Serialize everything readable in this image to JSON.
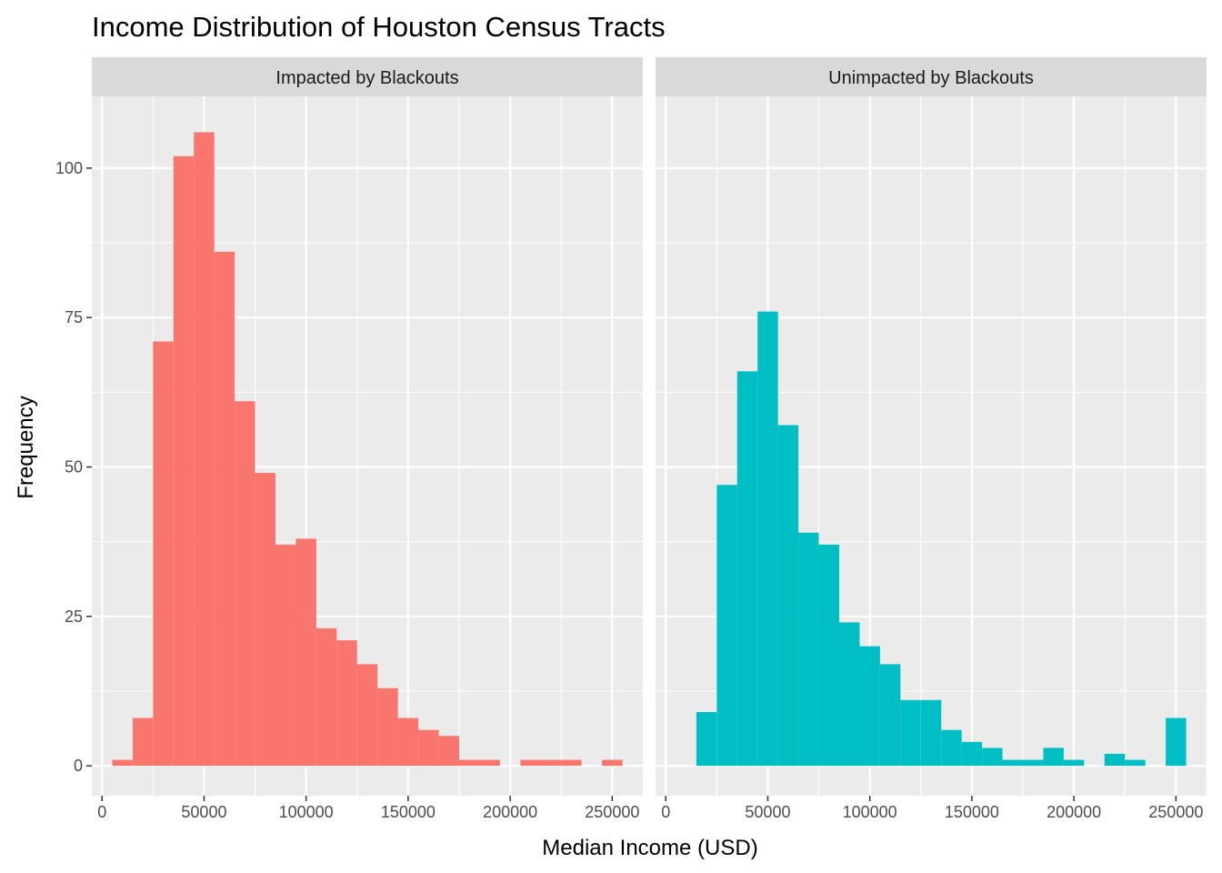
{
  "chart_data": {
    "type": "bar",
    "title": "Income Distribution of Houston Census Tracts",
    "xlabel": "Median Income (USD)",
    "ylabel": "Frequency",
    "xlim": [
      -5000,
      265000
    ],
    "ylim": [
      -5,
      112
    ],
    "x_ticks": [
      0,
      50000,
      100000,
      150000,
      200000,
      250000
    ],
    "x_tick_labels": [
      "0",
      "50000",
      "100000",
      "150000",
      "200000",
      "250000"
    ],
    "y_ticks": [
      0,
      25,
      50,
      75,
      100
    ],
    "y_tick_labels": [
      "0",
      "25",
      "50",
      "75",
      "100"
    ],
    "grid": true,
    "bin_width": 10000,
    "bin_starts": [
      5000,
      15000,
      25000,
      35000,
      45000,
      55000,
      65000,
      75000,
      85000,
      95000,
      105000,
      115000,
      125000,
      135000,
      145000,
      155000,
      165000,
      175000,
      185000,
      195000,
      205000,
      215000,
      225000,
      235000,
      245000
    ],
    "panels": [
      {
        "strip": "Impacted by Blackouts",
        "color": "#F8766D",
        "values": [
          1,
          8,
          71,
          102,
          106,
          86,
          61,
          49,
          37,
          38,
          23,
          21,
          17,
          13,
          8,
          6,
          5,
          1,
          1,
          0,
          1,
          1,
          1,
          0,
          1
        ]
      },
      {
        "strip": "Unimpacted by Blackouts",
        "color": "#00BFC4",
        "values": [
          0,
          9,
          47,
          66,
          76,
          57,
          39,
          37,
          24,
          20,
          17,
          11,
          11,
          6,
          4,
          3,
          1,
          1,
          3,
          1,
          0,
          2,
          1,
          0,
          8
        ]
      }
    ]
  }
}
